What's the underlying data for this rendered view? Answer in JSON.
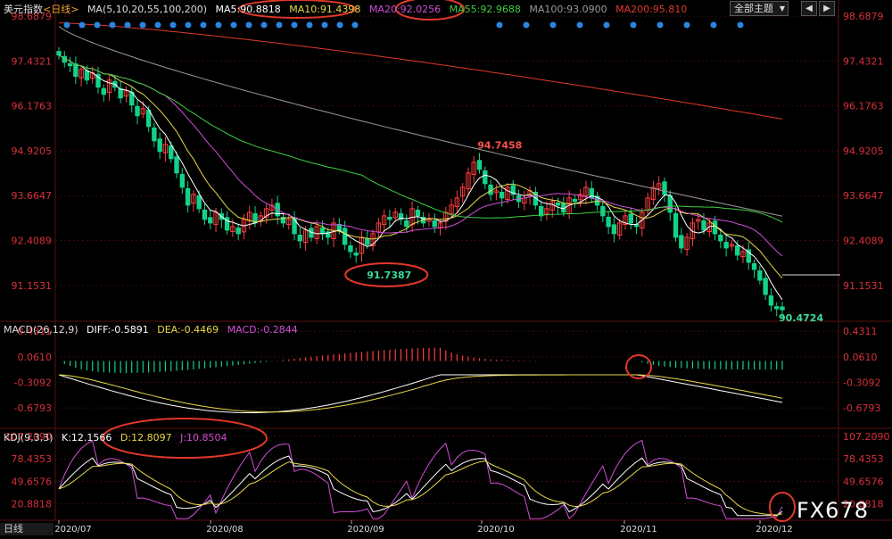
{
  "header": {
    "symbol": "美元指数",
    "period": "<日线>",
    "ma_title": "MA(5,10,20,55,100,200)",
    "ma5": "MA5:90.8818",
    "ma10": "MA10:91.4398",
    "ma20": "MA20:92.0256",
    "ma55": "MA55:92.9688",
    "ma100": "MA100:93.0900",
    "ma200": "MA200:95.810",
    "theme_button": "全部主题",
    "nav_down": "▼",
    "nav_left": "◀",
    "nav_right": "▶"
  },
  "macd_legend": {
    "title": "MACD(26,12,9)",
    "diff": "DIFF:-0.5891",
    "dea": "DEA:-0.4469",
    "macd": "MACD:-0.2844"
  },
  "kdj_legend": {
    "title": "KDJ(9,3,3)",
    "k": "K:12.1566",
    "d": "D:12.8097",
    "j": "J:10.8504"
  },
  "watermark": "FX678",
  "bottom_tab": "日线",
  "colors": {
    "up": "#ff3d3d",
    "down": "#12d28a",
    "ma5": "#ffffff",
    "ma10": "#e8d84a",
    "ma20": "#d14ed8",
    "ma55": "#3fcf3f",
    "ma100": "#9a9a9a",
    "ma200": "#e0382a",
    "axis_text": "#d8303a",
    "grid": "#3a0d0d",
    "annotation_circle": "#e0382a",
    "marker_dot": "#2a86e0"
  },
  "chart_data": [
    {
      "type": "candlestick",
      "name_symbol": "美元指数",
      "x_ticks": [
        "2020/07",
        "2020/08",
        "2020/09",
        "2020/10",
        "2020/11",
        "2020/12"
      ],
      "y_ticks": [
        98.6879,
        97.4321,
        96.1763,
        94.9205,
        93.6647,
        92.4089,
        91.1531
      ],
      "ylim": [
        90.2,
        98.69
      ],
      "annotations": [
        {
          "text": "94.7458",
          "label": "high"
        },
        {
          "text": "91.7387",
          "label": "low"
        },
        {
          "text": "90.4724",
          "label": "latest low"
        }
      ],
      "reference_line_value": 91.45,
      "top_marker_count": 30,
      "closes": [
        97.6,
        97.4,
        97.3,
        97.0,
        97.2,
        96.9,
        97.1,
        96.7,
        96.5,
        96.9,
        96.7,
        96.4,
        96.6,
        96.2,
        95.9,
        96.1,
        95.6,
        95.2,
        94.9,
        95.1,
        94.7,
        94.3,
        93.9,
        93.4,
        93.7,
        93.3,
        93.0,
        92.9,
        93.2,
        93.0,
        92.7,
        92.8,
        92.6,
        93.0,
        93.2,
        92.9,
        93.1,
        93.3,
        93.4,
        93.1,
        92.9,
        93.0,
        92.6,
        92.4,
        92.7,
        92.5,
        92.8,
        92.6,
        92.5,
        92.9,
        92.7,
        92.3,
        92.1,
        92.0,
        92.5,
        92.3,
        92.6,
        92.9,
        93.1,
        93.0,
        93.2,
        93.0,
        92.8,
        93.3,
        93.1,
        92.9,
        93.0,
        92.8,
        92.9,
        93.2,
        93.4,
        93.6,
        93.9,
        94.3,
        94.6,
        94.4,
        94.0,
        93.7,
        93.8,
        93.6,
        93.9,
        93.7,
        93.5,
        93.6,
        93.8,
        93.4,
        93.1,
        93.3,
        93.5,
        93.4,
        93.2,
        93.6,
        93.5,
        93.7,
        93.9,
        93.6,
        93.4,
        93.1,
        92.8,
        92.6,
        92.9,
        93.1,
        92.9,
        92.8,
        93.2,
        93.6,
        93.9,
        94.0,
        93.7,
        93.2,
        92.5,
        92.2,
        92.5,
        92.9,
        93.0,
        92.7,
        92.9,
        92.6,
        92.4,
        92.2,
        92.3,
        92.0,
        92.1,
        91.8,
        91.6,
        91.3,
        90.9,
        90.6,
        90.5,
        90.47
      ],
      "ma_values": {
        "ma5": 90.8818,
        "ma10": 91.4398,
        "ma20": 92.0256,
        "ma55": 92.9688,
        "ma100": 93.09,
        "ma200": 95.81
      }
    },
    {
      "type": "bar",
      "name": "MACD(26,12,9)",
      "y_ticks": [
        0.4311,
        0.061,
        -0.3092,
        -0.6793
      ],
      "ylim": [
        -0.95,
        0.55
      ],
      "diff_last": -0.5891,
      "dea_last": -0.4469,
      "macd_last": -0.2844
    },
    {
      "type": "line",
      "name": "KDJ(9,3,3)",
      "y_ticks": [
        107.209,
        78.4353,
        49.6576,
        20.8818
      ],
      "ylim": [
        0,
        115
      ],
      "k_last": 12.1566,
      "d_last": 12.8097,
      "j_last": 10.8504
    }
  ]
}
